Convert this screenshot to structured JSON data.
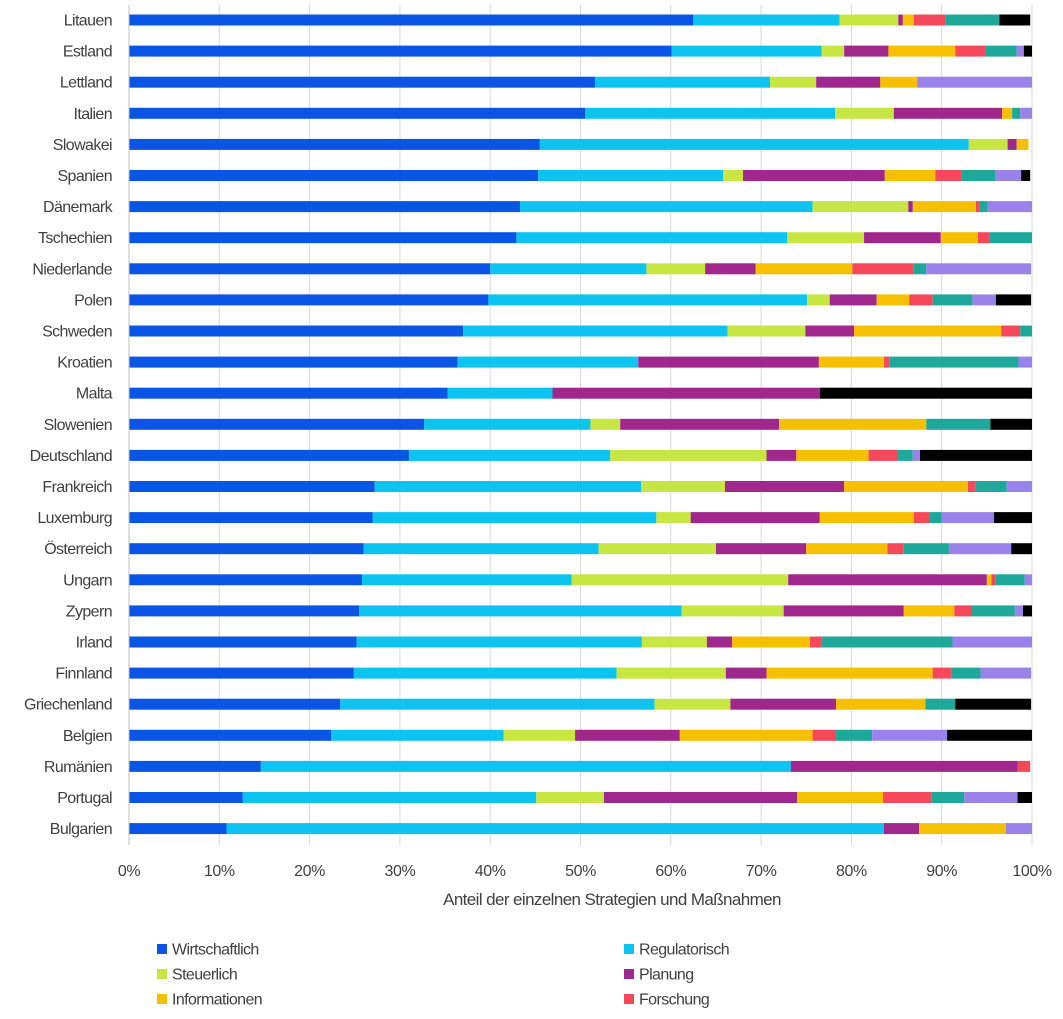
{
  "chart_data": {
    "type": "bar",
    "orientation": "horizontal",
    "stacked": true,
    "xlabel": "Anteil der einzelnen Strategien und Maßnahmen",
    "ylabel": "",
    "xlim": [
      0,
      100
    ],
    "x_ticks": [
      "0%",
      "10%",
      "20%",
      "30%",
      "40%",
      "50%",
      "60%",
      "70%",
      "80%",
      "90%",
      "100%"
    ],
    "grid": "vertical",
    "legend_position": "bottom",
    "categories": [
      "Litauen",
      "Estland",
      "Lettland",
      "Italien",
      "Slowakei",
      "Spanien",
      "Dänemark",
      "Tschechien",
      "Niederlande",
      "Polen",
      "Schweden",
      "Kroatien",
      "Malta",
      "Slowenien",
      "Deutschland",
      "Frankreich",
      "Luxemburg",
      "Österreich",
      "Ungarn",
      "Zypern",
      "Irland",
      "Finnland",
      "Griechenland",
      "Belgien",
      "Rumänien",
      "Portugal",
      "Bulgarien"
    ],
    "series": [
      {
        "name": "Wirtschaftlich",
        "color": "#0a55e6",
        "values": [
          62.5,
          60.1,
          51.6,
          50.5,
          45.5,
          45.3,
          43.3,
          42.9,
          40.0,
          39.8,
          37.0,
          36.4,
          35.3,
          32.7,
          31.0,
          27.2,
          27.0,
          26.0,
          25.8,
          25.5,
          25.2,
          24.9,
          23.4,
          22.4,
          14.6,
          12.6,
          10.8
        ]
      },
      {
        "name": "Regulatorisch",
        "color": "#0dc4f0",
        "values": [
          16.2,
          16.6,
          19.4,
          27.7,
          47.5,
          20.5,
          32.4,
          30.0,
          17.3,
          35.3,
          29.3,
          20.0,
          11.6,
          18.4,
          22.3,
          29.5,
          31.4,
          26.0,
          23.2,
          35.7,
          31.6,
          29.1,
          34.8,
          19.1,
          58.7,
          32.5,
          72.8
        ]
      },
      {
        "name": "Steuerlich",
        "color": "#c8e641",
        "values": [
          6.5,
          2.5,
          5.1,
          6.5,
          4.3,
          2.2,
          10.6,
          8.5,
          6.5,
          2.5,
          8.6,
          0,
          0,
          3.3,
          17.3,
          9.3,
          3.8,
          13.0,
          24.0,
          11.3,
          7.2,
          12.1,
          8.4,
          7.9,
          0,
          7.5,
          0
        ]
      },
      {
        "name": "Planung",
        "color": "#a0288c",
        "values": [
          0.5,
          4.9,
          7.1,
          12.0,
          1.0,
          15.7,
          0.5,
          8.5,
          5.6,
          5.2,
          5.4,
          20.0,
          29.6,
          17.6,
          3.3,
          13.2,
          14.3,
          10.0,
          22.0,
          13.3,
          2.8,
          4.5,
          11.7,
          11.6,
          25.1,
          21.4,
          3.9
        ]
      },
      {
        "name": "Informationen",
        "color": "#f5c000",
        "values": [
          1.2,
          7.4,
          4.1,
          1.1,
          1.3,
          5.6,
          7.0,
          4.1,
          10.7,
          3.6,
          16.3,
          7.2,
          0,
          16.3,
          8.0,
          13.7,
          10.4,
          9.0,
          0.5,
          5.6,
          8.6,
          18.4,
          9.9,
          14.7,
          0,
          9.5,
          9.6
        ]
      },
      {
        "name": "Forschung",
        "color": "#f5485a",
        "values": [
          3.5,
          3.4,
          0,
          0,
          0,
          2.9,
          0.4,
          1.3,
          6.8,
          2.6,
          2.1,
          0.6,
          0,
          0,
          3.2,
          0.8,
          1.8,
          1.8,
          0.5,
          1.9,
          1.3,
          2.1,
          0,
          2.6,
          1.4,
          5.4,
          0
        ]
      },
      {
        "name": "",
        "color": "#1ea89a",
        "values": [
          6.0,
          3.4,
          0,
          0.9,
          0,
          3.7,
          0.9,
          4.7,
          1.4,
          4.4,
          1.3,
          14.3,
          0,
          7.1,
          1.7,
          3.5,
          1.3,
          5.0,
          3.2,
          4.8,
          14.5,
          3.2,
          3.3,
          4.0,
          0,
          3.6,
          0
        ]
      },
      {
        "name": "",
        "color": "#9a82eb",
        "values": [
          0,
          0.8,
          12.7,
          1.3,
          0,
          2.9,
          4.9,
          0,
          11.6,
          2.6,
          0,
          1.5,
          0,
          0,
          0.8,
          3.0,
          5.8,
          6.9,
          0.8,
          0.9,
          8.8,
          5.6,
          0,
          8.3,
          0,
          5.9,
          2.9
        ]
      },
      {
        "name": "",
        "color": "#000000",
        "values": [
          3.4,
          1.0,
          0,
          0,
          0,
          1.0,
          0,
          0,
          0,
          3.9,
          0,
          0,
          23.5,
          4.6,
          12.4,
          0,
          4.2,
          2.3,
          0,
          1.0,
          0,
          0,
          8.4,
          9.4,
          0,
          1.6,
          0
        ]
      }
    ]
  }
}
